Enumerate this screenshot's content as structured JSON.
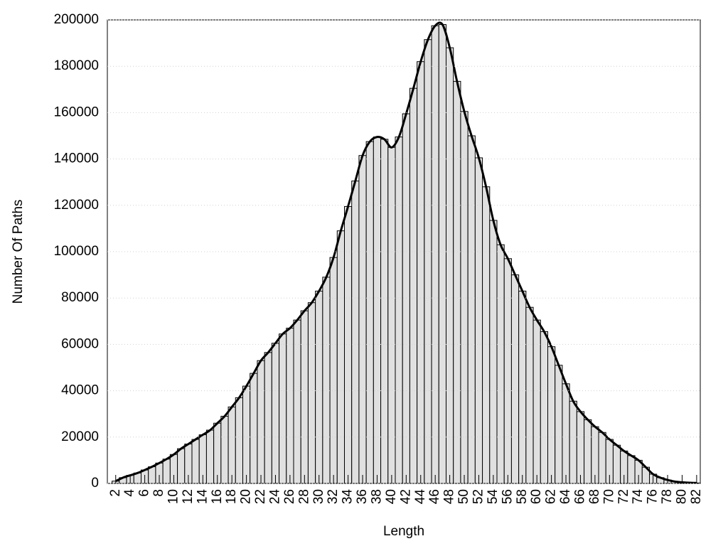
{
  "chart_data": {
    "type": "bar",
    "x_label": "Length",
    "y_label": "Number Of Paths",
    "x": [
      2,
      3,
      4,
      5,
      6,
      7,
      8,
      9,
      10,
      11,
      12,
      13,
      14,
      15,
      16,
      17,
      18,
      19,
      20,
      21,
      22,
      23,
      24,
      25,
      26,
      27,
      28,
      29,
      30,
      31,
      32,
      33,
      34,
      35,
      36,
      37,
      38,
      39,
      40,
      41,
      42,
      43,
      44,
      45,
      46,
      47,
      48,
      49,
      50,
      51,
      52,
      53,
      54,
      55,
      56,
      57,
      58,
      59,
      60,
      61,
      62,
      63,
      64,
      65,
      66,
      67,
      68,
      69,
      70,
      71,
      72,
      73,
      74,
      75,
      76,
      77,
      78,
      79,
      80,
      81,
      82
    ],
    "values": [
      1000,
      2500,
      3500,
      4500,
      5800,
      7200,
      8800,
      10500,
      12500,
      15000,
      17000,
      19000,
      21000,
      23000,
      26000,
      29000,
      33000,
      37000,
      42000,
      47500,
      53000,
      56500,
      60500,
      64500,
      67000,
      70500,
      74500,
      78000,
      83000,
      89000,
      97500,
      109000,
      119500,
      130500,
      141500,
      147500,
      149500,
      148500,
      145000,
      149500,
      159500,
      170500,
      182000,
      191500,
      197500,
      198000,
      188000,
      173500,
      160500,
      150000,
      140500,
      128000,
      113500,
      103000,
      97000,
      90000,
      83000,
      76000,
      70500,
      65500,
      59000,
      51000,
      43000,
      35500,
      31000,
      27500,
      24500,
      22000,
      19000,
      16500,
      14000,
      12000,
      10000,
      7000,
      4000,
      2500,
      1500,
      800,
      500,
      300,
      200
    ],
    "color": "#e0e0e0",
    "line_color": "#000000",
    "xlim": [
      0.85,
      82.5
    ],
    "xticks": [
      2,
      4,
      6,
      8,
      10,
      12,
      14,
      16,
      18,
      20,
      22,
      24,
      26,
      28,
      30,
      32,
      34,
      36,
      38,
      40,
      42,
      44,
      46,
      48,
      50,
      52,
      54,
      56,
      58,
      60,
      62,
      64,
      66,
      68,
      70,
      72,
      74,
      76,
      78,
      80,
      82
    ],
    "ylim": [
      0,
      200000
    ],
    "yticks": [
      0,
      20000,
      40000,
      60000,
      80000,
      100000,
      120000,
      140000,
      160000,
      180000,
      200000
    ],
    "grid": true
  }
}
